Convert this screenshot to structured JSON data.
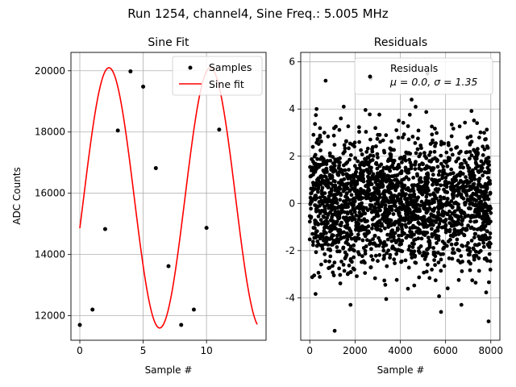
{
  "figure": {
    "suptitle": "Run 1254, channel4, Sine Freq.: 5.005 MHz"
  },
  "colors": {
    "fit": "#ff0000",
    "samples": "#000000",
    "residuals": "#000000",
    "grid": "#b0b0b0"
  },
  "chart_data": [
    {
      "type": "scatter",
      "title": "Sine Fit",
      "xlabel": "Sample #",
      "ylabel": "ADC Counts",
      "xlim": [
        -0.7,
        14.7
      ],
      "ylim": [
        11200,
        20600
      ],
      "xticks": [
        0,
        5,
        10
      ],
      "yticks": [
        12000,
        14000,
        16000,
        18000,
        20000
      ],
      "grid": true,
      "legend": {
        "placement": "upper-right",
        "entries": [
          "Samples",
          "Sine fit"
        ]
      },
      "series": [
        {
          "name": "Samples",
          "kind": "points",
          "x": [
            0,
            1,
            2,
            3,
            4,
            5,
            6,
            7,
            8,
            9,
            10,
            11
          ],
          "y": [
            11700,
            12200,
            14830,
            18050,
            19980,
            19480,
            16820,
            13620,
            11700,
            12200,
            14870,
            18080
          ]
        },
        {
          "name": "Sine fit",
          "kind": "line",
          "x_range": [
            0,
            14
          ],
          "model": {
            "offset": 15850,
            "amplitude": 4250,
            "period": 8.0,
            "phase_sample": 2.3
          }
        }
      ]
    },
    {
      "type": "scatter",
      "title": "Residuals",
      "xlabel": "Sample #",
      "ylabel": "",
      "xlim": [
        -400,
        8400
      ],
      "ylim": [
        -5.8,
        6.4
      ],
      "xticks": [
        0,
        2000,
        4000,
        6000,
        8000
      ],
      "yticks": [
        -4,
        -2,
        0,
        2,
        4,
        6
      ],
      "grid": true,
      "legend": {
        "placement": "upper-right",
        "entries": [
          "Residuals"
        ],
        "stats": "μ = 0.0, σ = 1.35"
      },
      "series": [
        {
          "name": "Residuals",
          "kind": "points",
          "n_points": 8000,
          "x_range": [
            0,
            8000
          ],
          "mean": 0.0,
          "std": 1.35,
          "outliers": [
            [
              700,
              5.2
            ],
            [
              1100,
              -5.4
            ],
            [
              2700,
              5.3
            ],
            [
              5200,
              5.5
            ],
            [
              7900,
              -5.0
            ],
            [
              5800,
              -4.6
            ],
            [
              1500,
              4.1
            ],
            [
              300,
              4.0
            ],
            [
              6700,
              -4.3
            ],
            [
              1800,
              -4.3
            ],
            [
              4500,
              4.4
            ]
          ]
        }
      ]
    }
  ]
}
